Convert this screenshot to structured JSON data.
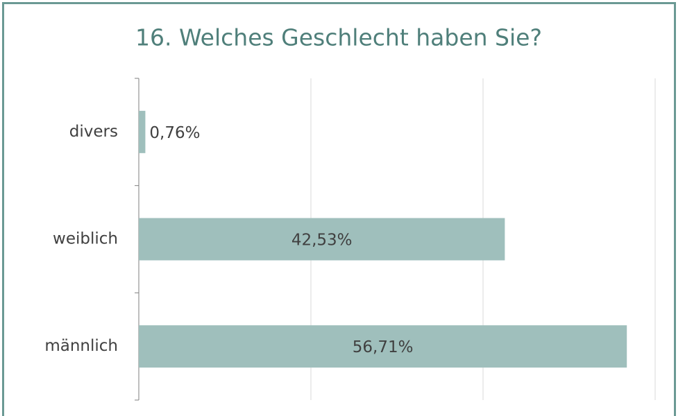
{
  "chart_data": {
    "type": "bar",
    "orientation": "horizontal",
    "title": "16. Welches Geschlecht haben Sie?",
    "categories": [
      "divers",
      "weiblich",
      "männlich"
    ],
    "values": [
      0.76,
      42.53,
      56.71
    ],
    "value_labels": [
      "0,76%",
      "42,53%",
      "56,71%"
    ],
    "color": "#9fbfbc",
    "xlim": [
      0,
      60
    ],
    "xticks": [
      0,
      20,
      40,
      60
    ],
    "grid": true
  }
}
